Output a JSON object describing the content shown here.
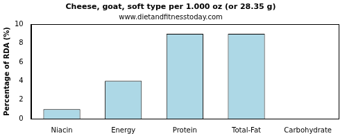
{
  "chart_data": {
    "type": "bar",
    "title": "Cheese, goat, soft type per 1.000 oz (or 28.35 g)",
    "subtitle": "www.dietandfitnesstoday.com",
    "y_label": "Percentage of RDA (%)",
    "categories": [
      "Niacin",
      "Energy",
      "Protein",
      "Total-Fat",
      "Carbohydrate"
    ],
    "values": [
      1,
      4,
      9,
      9,
      0
    ],
    "color": "#add8e6",
    "ylim": [
      0,
      10
    ],
    "yticks": [
      0,
      2,
      4,
      6,
      8,
      10
    ],
    "grid": false
  }
}
